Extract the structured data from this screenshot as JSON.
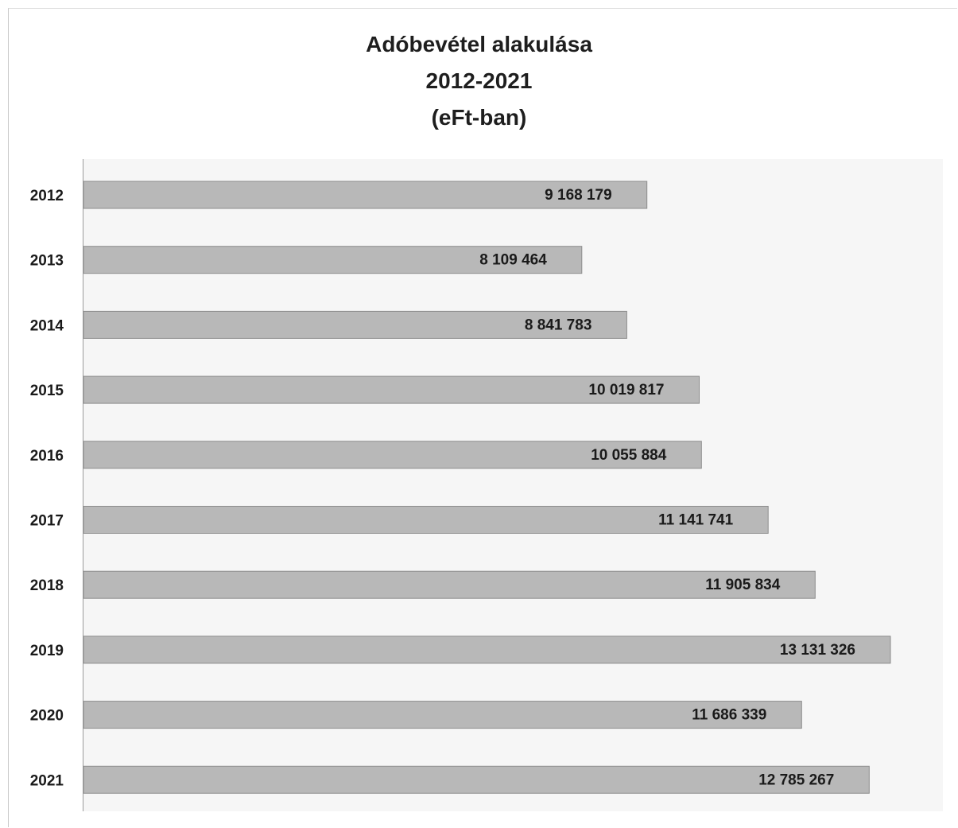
{
  "chart_data": {
    "type": "bar",
    "orientation": "horizontal",
    "title": [
      "Adóbevétel alakulása",
      "2012-2021",
      "(eFt-ban)"
    ],
    "xlabel": "",
    "ylabel": "",
    "categories": [
      "2012",
      "2013",
      "2014",
      "2015",
      "2016",
      "2017",
      "2018",
      "2019",
      "2020",
      "2021"
    ],
    "values": [
      9168179,
      8109464,
      8841783,
      10019817,
      10055884,
      11141741,
      11905834,
      13131326,
      11686339,
      12785267
    ],
    "value_labels": [
      "9 168 179",
      "8 109 464",
      "8 841 783",
      "10 019 817",
      "10 055 884",
      "11 141 741",
      "11 905 834",
      "13 131 326",
      "11 686 339",
      "12 785 267"
    ],
    "xlim": [
      0,
      14000000
    ],
    "grid": false,
    "legend": "none",
    "bar_color": "#b8b8b8",
    "bar_border_color": "#8c8c8c",
    "label_position": "inside-end"
  }
}
